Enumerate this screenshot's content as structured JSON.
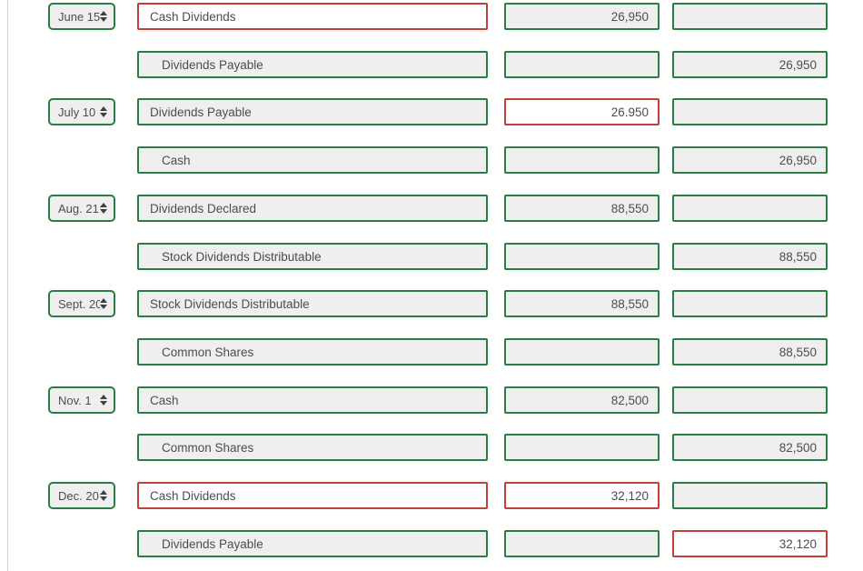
{
  "colors": {
    "correct_border": "#2a7d43",
    "incorrect_border": "#c2403a",
    "field_background": "#f0efef",
    "incorrect_background": "#ffffff",
    "text": "#4d4d4d"
  },
  "journal": {
    "rows": [
      {
        "date": "June 15",
        "account": {
          "text": "Cash Dividends",
          "indent": false,
          "state": "incorrect"
        },
        "debit": {
          "value": "26,950",
          "state": "correct"
        },
        "credit": {
          "value": "",
          "state": "correct"
        }
      },
      {
        "date": null,
        "account": {
          "text": "Dividends Payable",
          "indent": true,
          "state": "correct"
        },
        "debit": {
          "value": "",
          "state": "correct"
        },
        "credit": {
          "value": "26,950",
          "state": "correct"
        }
      },
      {
        "date": "July 10",
        "account": {
          "text": "Dividends Payable",
          "indent": false,
          "state": "correct"
        },
        "debit": {
          "value": "26.950",
          "state": "incorrect"
        },
        "credit": {
          "value": "",
          "state": "correct"
        }
      },
      {
        "date": null,
        "account": {
          "text": "Cash",
          "indent": true,
          "state": "correct"
        },
        "debit": {
          "value": "",
          "state": "correct"
        },
        "credit": {
          "value": "26,950",
          "state": "correct"
        }
      },
      {
        "date": "Aug. 21",
        "account": {
          "text": "Dividends Declared",
          "indent": false,
          "state": "correct"
        },
        "debit": {
          "value": "88,550",
          "state": "correct"
        },
        "credit": {
          "value": "",
          "state": "correct"
        }
      },
      {
        "date": null,
        "account": {
          "text": "Stock Dividends Distributable",
          "indent": true,
          "state": "correct"
        },
        "debit": {
          "value": "",
          "state": "correct"
        },
        "credit": {
          "value": "88,550",
          "state": "correct"
        }
      },
      {
        "date": "Sept. 20",
        "account": {
          "text": "Stock Dividends Distributable",
          "indent": false,
          "state": "correct"
        },
        "debit": {
          "value": "88,550",
          "state": "correct"
        },
        "credit": {
          "value": "",
          "state": "correct"
        }
      },
      {
        "date": null,
        "account": {
          "text": "Common Shares",
          "indent": true,
          "state": "correct"
        },
        "debit": {
          "value": "",
          "state": "correct"
        },
        "credit": {
          "value": "88,550",
          "state": "correct"
        }
      },
      {
        "date": "Nov. 1",
        "account": {
          "text": "Cash",
          "indent": false,
          "state": "correct"
        },
        "debit": {
          "value": "82,500",
          "state": "correct"
        },
        "credit": {
          "value": "",
          "state": "correct"
        }
      },
      {
        "date": null,
        "account": {
          "text": "Common Shares",
          "indent": true,
          "state": "correct"
        },
        "debit": {
          "value": "",
          "state": "correct"
        },
        "credit": {
          "value": "82,500",
          "state": "correct"
        }
      },
      {
        "date": "Dec. 20",
        "account": {
          "text": "Cash Dividends",
          "indent": false,
          "state": "incorrect"
        },
        "debit": {
          "value": "32,120",
          "state": "incorrect"
        },
        "credit": {
          "value": "",
          "state": "correct"
        }
      },
      {
        "date": null,
        "account": {
          "text": "Dividends Payable",
          "indent": true,
          "state": "correct"
        },
        "debit": {
          "value": "",
          "state": "correct"
        },
        "credit": {
          "value": "32,120",
          "state": "incorrect"
        }
      }
    ]
  }
}
